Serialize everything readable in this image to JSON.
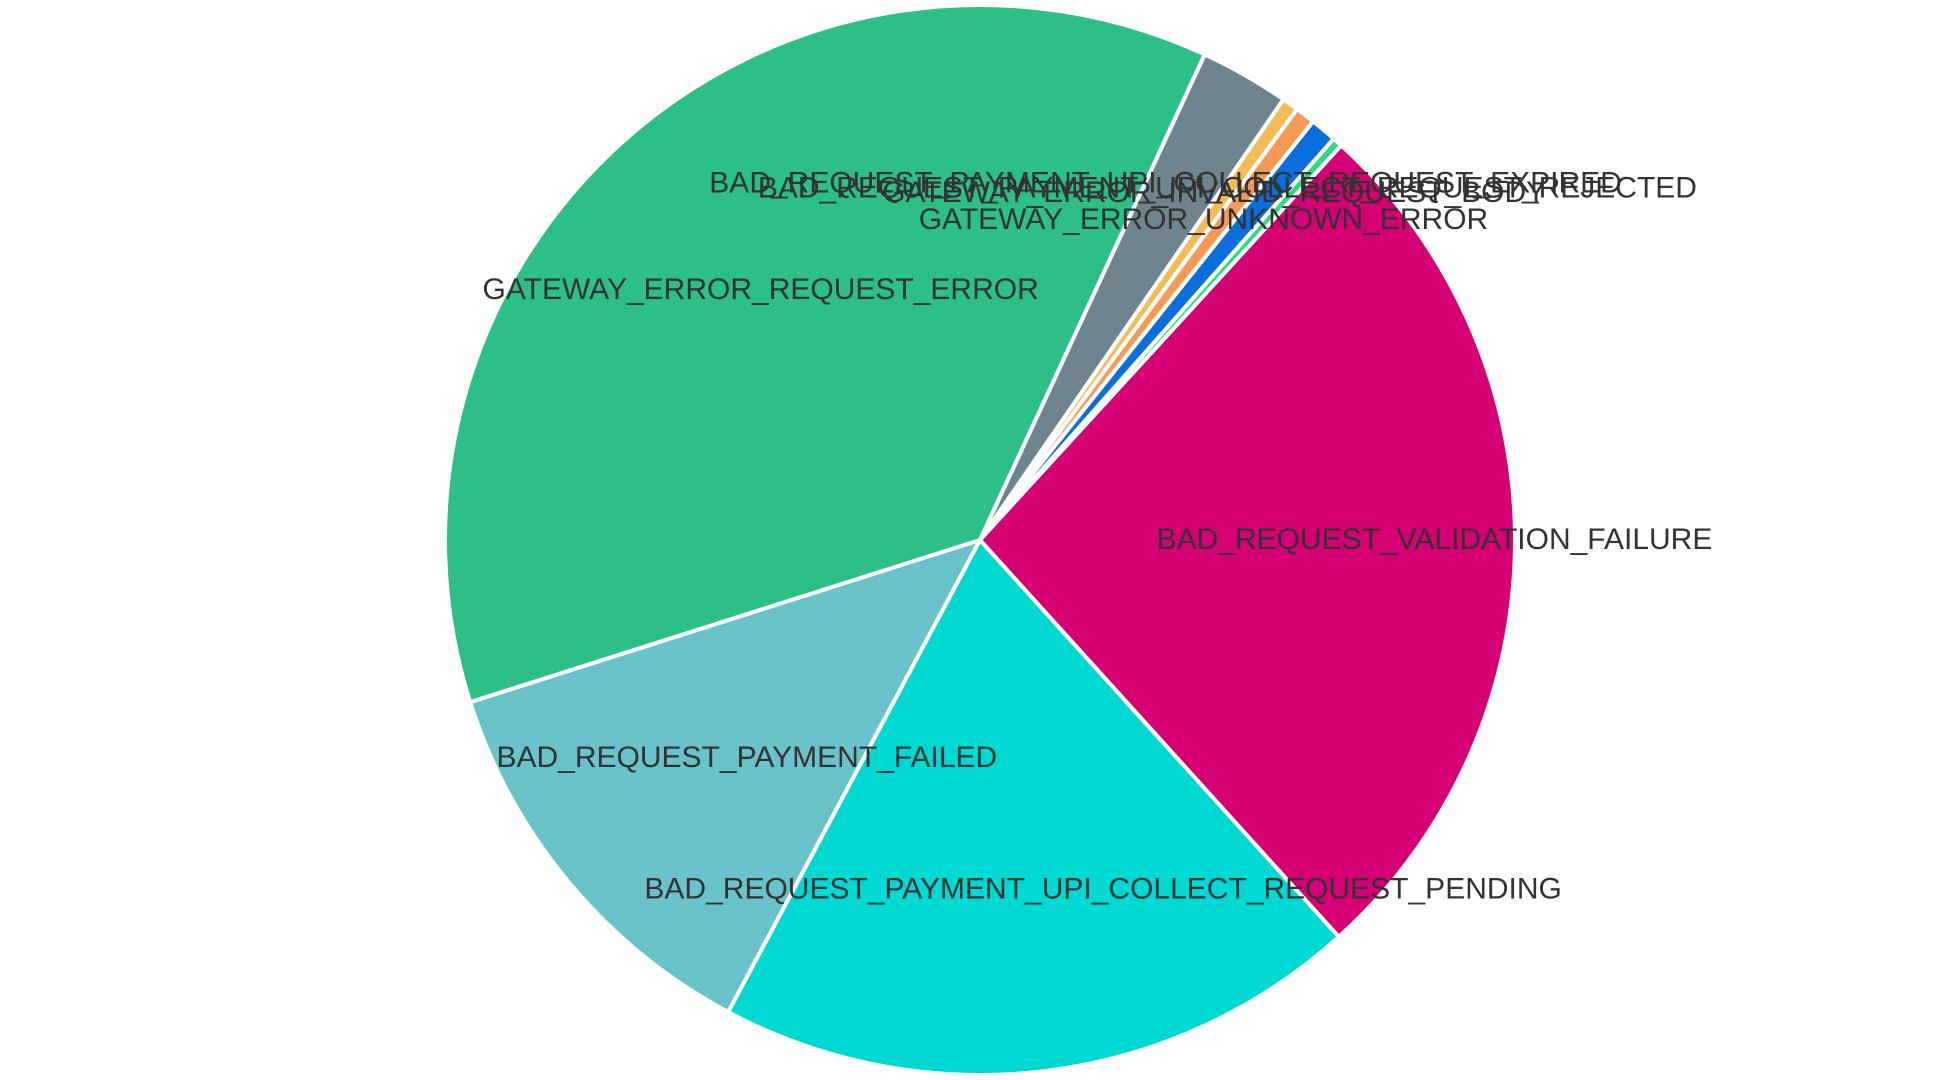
{
  "chart_data": {
    "type": "pie",
    "title": "",
    "legend": "none",
    "slices": [
      {
        "label": "BAD_REQUEST_PAYMENT_UPI_COLLECT_REQUEST_PENDING",
        "value": 19.5,
        "color": "#00d8d2"
      },
      {
        "label": "BAD_REQUEST_PAYMENT_FAILED",
        "value": 12.3,
        "color": "#6ac3ca"
      },
      {
        "label": "GATEWAY_ERROR_REQUEST_ERROR",
        "value": 36.8,
        "color": "#2cbf88"
      },
      {
        "label": "BAD_REQUEST_PAYMENT_UPI_COLLECT_REQUEST_EXPIRED",
        "value": 2.7,
        "color": "#6e8590"
      },
      {
        "label": "GATEWAY_ERROR_UNKNOWN_ERROR",
        "value": 0.5,
        "color": "#f5bc55"
      },
      {
        "label": "GATEWAY_ERROR_INVALID_REQUEST_BODY",
        "value": 0.6,
        "color": "#f39a55"
      },
      {
        "label": "BAD_REQUEST_PAYMENT_UPI_COLLECT_REQUEST_REJECTED",
        "value": 0.8,
        "color": "#0a6fdc"
      },
      {
        "label": "",
        "value": 0.3,
        "color": "#2ddc80"
      },
      {
        "label": "BAD_REQUEST_VALIDATION_FAILURE",
        "value": 26.5,
        "color": "#d50073"
      }
    ]
  }
}
